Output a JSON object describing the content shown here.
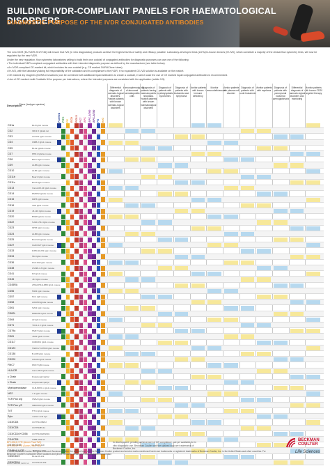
{
  "header": {
    "title": "BUILDING IVDR-COMPLIANT PANELS FOR HAEMATOLOGICAL DISORDERS",
    "subtitle": "DIAGNOSTIC PURPOSE OF THE IVDR CONJUGATED ANTIBODIES"
  },
  "intro": [
    "The new IVDR (EU IVDR 2017/746) will ensure that IVD (in vitro diagnostics) products achieve the highest levels of safety and efficacy possible. Laboratory-developed tests (LDTs)/in-house devices (IH-IVD), which constitute a majority of the clinical flow cytometry tests, will now be regulated by the new IVDR.",
    "Under the new regulation, flow cytometry laboratories willing to build their own cocktail of conjugated antibodies for diagnostic purposes can use one of the following:",
    "• The individual IVDR compliant conjugated antibodies with their intended diagnostic purpose as defined by the manufacturer (see table below).",
    "• An IVDR-compliant CE-marked kit, which includes its own cocktail (e.g. CE marked DURAClone tubes).",
    "• IH-IVD, with the laboratory taking full responsibility of the validation and its compliance to the IVDR, if no equivalent CE-IVD solution is available on the market.",
    "• CE marked dry reagents (DURA Innovations) can be combined with additional liquid antibodies to create a cocktail, in which case the use of CE marked liquid conjugated antibodies is recommended.",
    "• Use of CE marked multi Cocktails fit for purpose per instructions, where the intended purposes are consistent with the application (article 5.5)."
  ],
  "table": {
    "desc_header": "Description",
    "clone_header": "Clone (isotype species)",
    "format_headers": [
      "Purified",
      "FITC",
      "PE",
      "ECD",
      "PC5.5",
      "PC7",
      "APC",
      "APC-A700",
      "APC-A750",
      "PB",
      "KrO"
    ],
    "format_colors": [
      "#1f3a93",
      "#2e8b3a",
      "#f0b429",
      "#e2592a",
      "#c0392b",
      "#b03a7a",
      "#d94f8a",
      "#8b2ea3",
      "#6b2b8e",
      "#2a55b8",
      "#e69a27"
    ],
    "purpose_headers": [
      "Differential diagnosis of haemato-logical disorders. Positive patients with known haemato-logical disorders",
      "Immunophenotyping of abnormal haematopoietic cells",
      "Diagnosis of patients having haematopoietic neoplasia. Positive patients with known haematological disorders",
      "Diagnosis of patients with myelodysplastic syndromes",
      "Diagnosis of patients with leukaemia and lymphoma",
      "Monitor patients with known immune deficiency",
      "Monitor immunodeficiencies",
      "Monitor patients with plasma cell disorder",
      "Diagnosis of patients with acute leukaemia",
      "Monitor patients with myeloma",
      "Diagnosis of patients with paroxysmal nocturnal haemoglobinuria",
      "Differential diagnosis of haemato-logical disorders and monitoring",
      "Monitor patients with known CD20 targeted therapy"
    ],
    "rows": [
      {
        "label": "CD1a",
        "clone": "BL6 IgG1 mouse"
      },
      {
        "label": "CD2",
        "clone": "39C1.5 IgG2a rat"
      },
      {
        "label": "CD3",
        "clone": "UCHT1 IgG1 mouse"
      },
      {
        "label": "CD4",
        "clone": "13B8.2 IgG1 mouse"
      },
      {
        "label": "CD5",
        "clone": "BL1a IgG2a mouse"
      },
      {
        "label": "CD7",
        "clone": "8H8.1 IgG2a mouse"
      },
      {
        "label": "CD8",
        "clone": "B9.11 IgG1 mouse"
      },
      {
        "label": "CD9",
        "clone": "ALB6 IgG1 mouse"
      },
      {
        "label": "CD10",
        "clone": "ALB1 IgG1 mouse"
      },
      {
        "label": "CD11b",
        "clone": "Bear1 IgG1 mouse"
      },
      {
        "label": "CD11c",
        "clone": "BU15 IgG1 mouse"
      },
      {
        "label": "CD13",
        "clone": "Immu103.44 IgG1 mouse"
      },
      {
        "label": "CD14",
        "clone": "RMO52 IgG2a mouse"
      },
      {
        "label": "CD15",
        "clone": "80H5 IgM mouse"
      },
      {
        "label": "CD16",
        "clone": "3G8 IgG1 mouse"
      },
      {
        "label": "CD19",
        "clone": "J3-119 IgG1 mouse"
      },
      {
        "label": "CD20",
        "clone": "B9E9 IgG2a mouse"
      },
      {
        "label": "CD22",
        "clone": "SJ10.1H11 IgG1 mouse"
      },
      {
        "label": "CD23",
        "clone": "9P25 IgG1 mouse"
      },
      {
        "label": "CD24",
        "clone": "ALB9 IgG1 mouse"
      },
      {
        "label": "CD25",
        "clone": "B1.49.9 IgG2a mouse"
      },
      {
        "label": "CD27",
        "clone": "1A4CD27 IgG1 mouse"
      },
      {
        "label": "CD33",
        "clone": "D3HL60.251 IgG1 mouse"
      },
      {
        "label": "CD34",
        "clone": "581 IgG1 mouse"
      },
      {
        "label": "CD36",
        "clone": "FA6.152 IgG1 mouse"
      },
      {
        "label": "CD38",
        "clone": "LS198-4-3 IgG1 mouse"
      },
      {
        "label": "CD41",
        "clone": "P2 IgG1 mouse"
      },
      {
        "label": "CD45",
        "clone": "J33 IgG1 mouse"
      },
      {
        "label": "CD45RA",
        "clone": "2H4LDH11LDB9 IgG1 mouse"
      },
      {
        "label": "CD56",
        "clone": "N901 IgG1 mouse"
      },
      {
        "label": "CD57",
        "clone": "NC1 IgM mouse"
      },
      {
        "label": "CD58",
        "clone": "AICD58 IgG2a mouse"
      },
      {
        "label": "CD61",
        "clone": "SZ21 IgG1 mouse"
      },
      {
        "label": "CD62L",
        "clone": "DREG56 IgG1 mouse"
      },
      {
        "label": "CD64",
        "clone": "22 IgG1 mouse"
      },
      {
        "label": "CD71",
        "clone": "YDJ1.2.2 IgG1 mouse"
      },
      {
        "label": "CD79a",
        "clone": "HM47 IgG1 mouse"
      },
      {
        "label": "CD81",
        "clone": "JS64 IgG1 mouse"
      },
      {
        "label": "CD117",
        "clone": "104D2D1 IgG1 mouse"
      },
      {
        "label": "CD123",
        "clone": "SSDCLY107D2 IgG1 mouse"
      },
      {
        "label": "CD138",
        "clone": "B-A38 IgG1 mouse"
      },
      {
        "label": "CD200",
        "clone": "OX104 IgG1 mouse"
      },
      {
        "label": "FMC7",
        "clone": "FMC7 IgM mouse"
      },
      {
        "label": "HLA-DR",
        "clone": "Immu-357 IgG1 mouse"
      },
      {
        "label": "κ Chain",
        "clone": "Polyclonal F(ab')2"
      },
      {
        "label": "λ Chain",
        "clone": "Polyclonal F(ab')2"
      },
      {
        "label": "Myeloperoxidase",
        "clone": "CLB-MPO-1 IgG1 mouse"
      },
      {
        "label": "NG2",
        "clone": "7.1 IgG1 mouse"
      },
      {
        "label": "TCR Pan α/β",
        "clone": "IP26A IgG1 mouse"
      },
      {
        "label": "TCR Pan γ/δ",
        "clone": "IMMU510 IgG1 mouse"
      },
      {
        "label": "TdT",
        "clone": "HT-6 IgG1 mouse"
      },
      {
        "label": "Syto",
        "clone": "nucleic acid dye"
      },
      {
        "label": "CD3/CD4",
        "clone": "UCHT1/13B8.2"
      },
      {
        "label": "CD3/CD8",
        "clone": "UCHT1/B9.11"
      },
      {
        "label": "CD3/CD16+CD56",
        "clone": "UCHT1/3G8/N901"
      },
      {
        "label": "CD4/CD8",
        "clone": "13B8.2/B9.11"
      },
      {
        "label": "CD10/CD19",
        "clone": "ALB1/J3-119"
      },
      {
        "label": "CD45/HLA-DR",
        "clone": "J33/Immu-357"
      },
      {
        "label": "CD5/CD19",
        "clone": "BL1a/J3-119"
      },
      {
        "label": "CD3/CD19",
        "clone": "UCHT1/J3-119"
      }
    ]
  },
  "footer": {
    "left_1": "EFI-0310 / FR (Anne-Paul TW)",
    "left_2": "EFI-0311 / FR (Anne-Paul TW)",
    "note": "In development; pending achievement of CE compliance, not yet available for in vitro diagnostic use. Beckman Coulter and the stylized logo are trademarks of Beckman Coulter, Inc.",
    "legal": "© 2023 Beckman Coulter. All rights reserved. Beckman Coulter, the stylized logo, and the Beckman Coulter product and service marks mentioned herein are trademarks or registered trademarks of Beckman Coulter, Inc. in the United States and other countries. For Beckman Coulter's worldwide office locations and phone numbers, please visit www.beckman.com/contact",
    "code": "2023-7488 BR 02/23 v1",
    "logo_line1": "BECKMAN",
    "logo_line2": "COULTER",
    "logo_tagline": "Life Sciences"
  }
}
